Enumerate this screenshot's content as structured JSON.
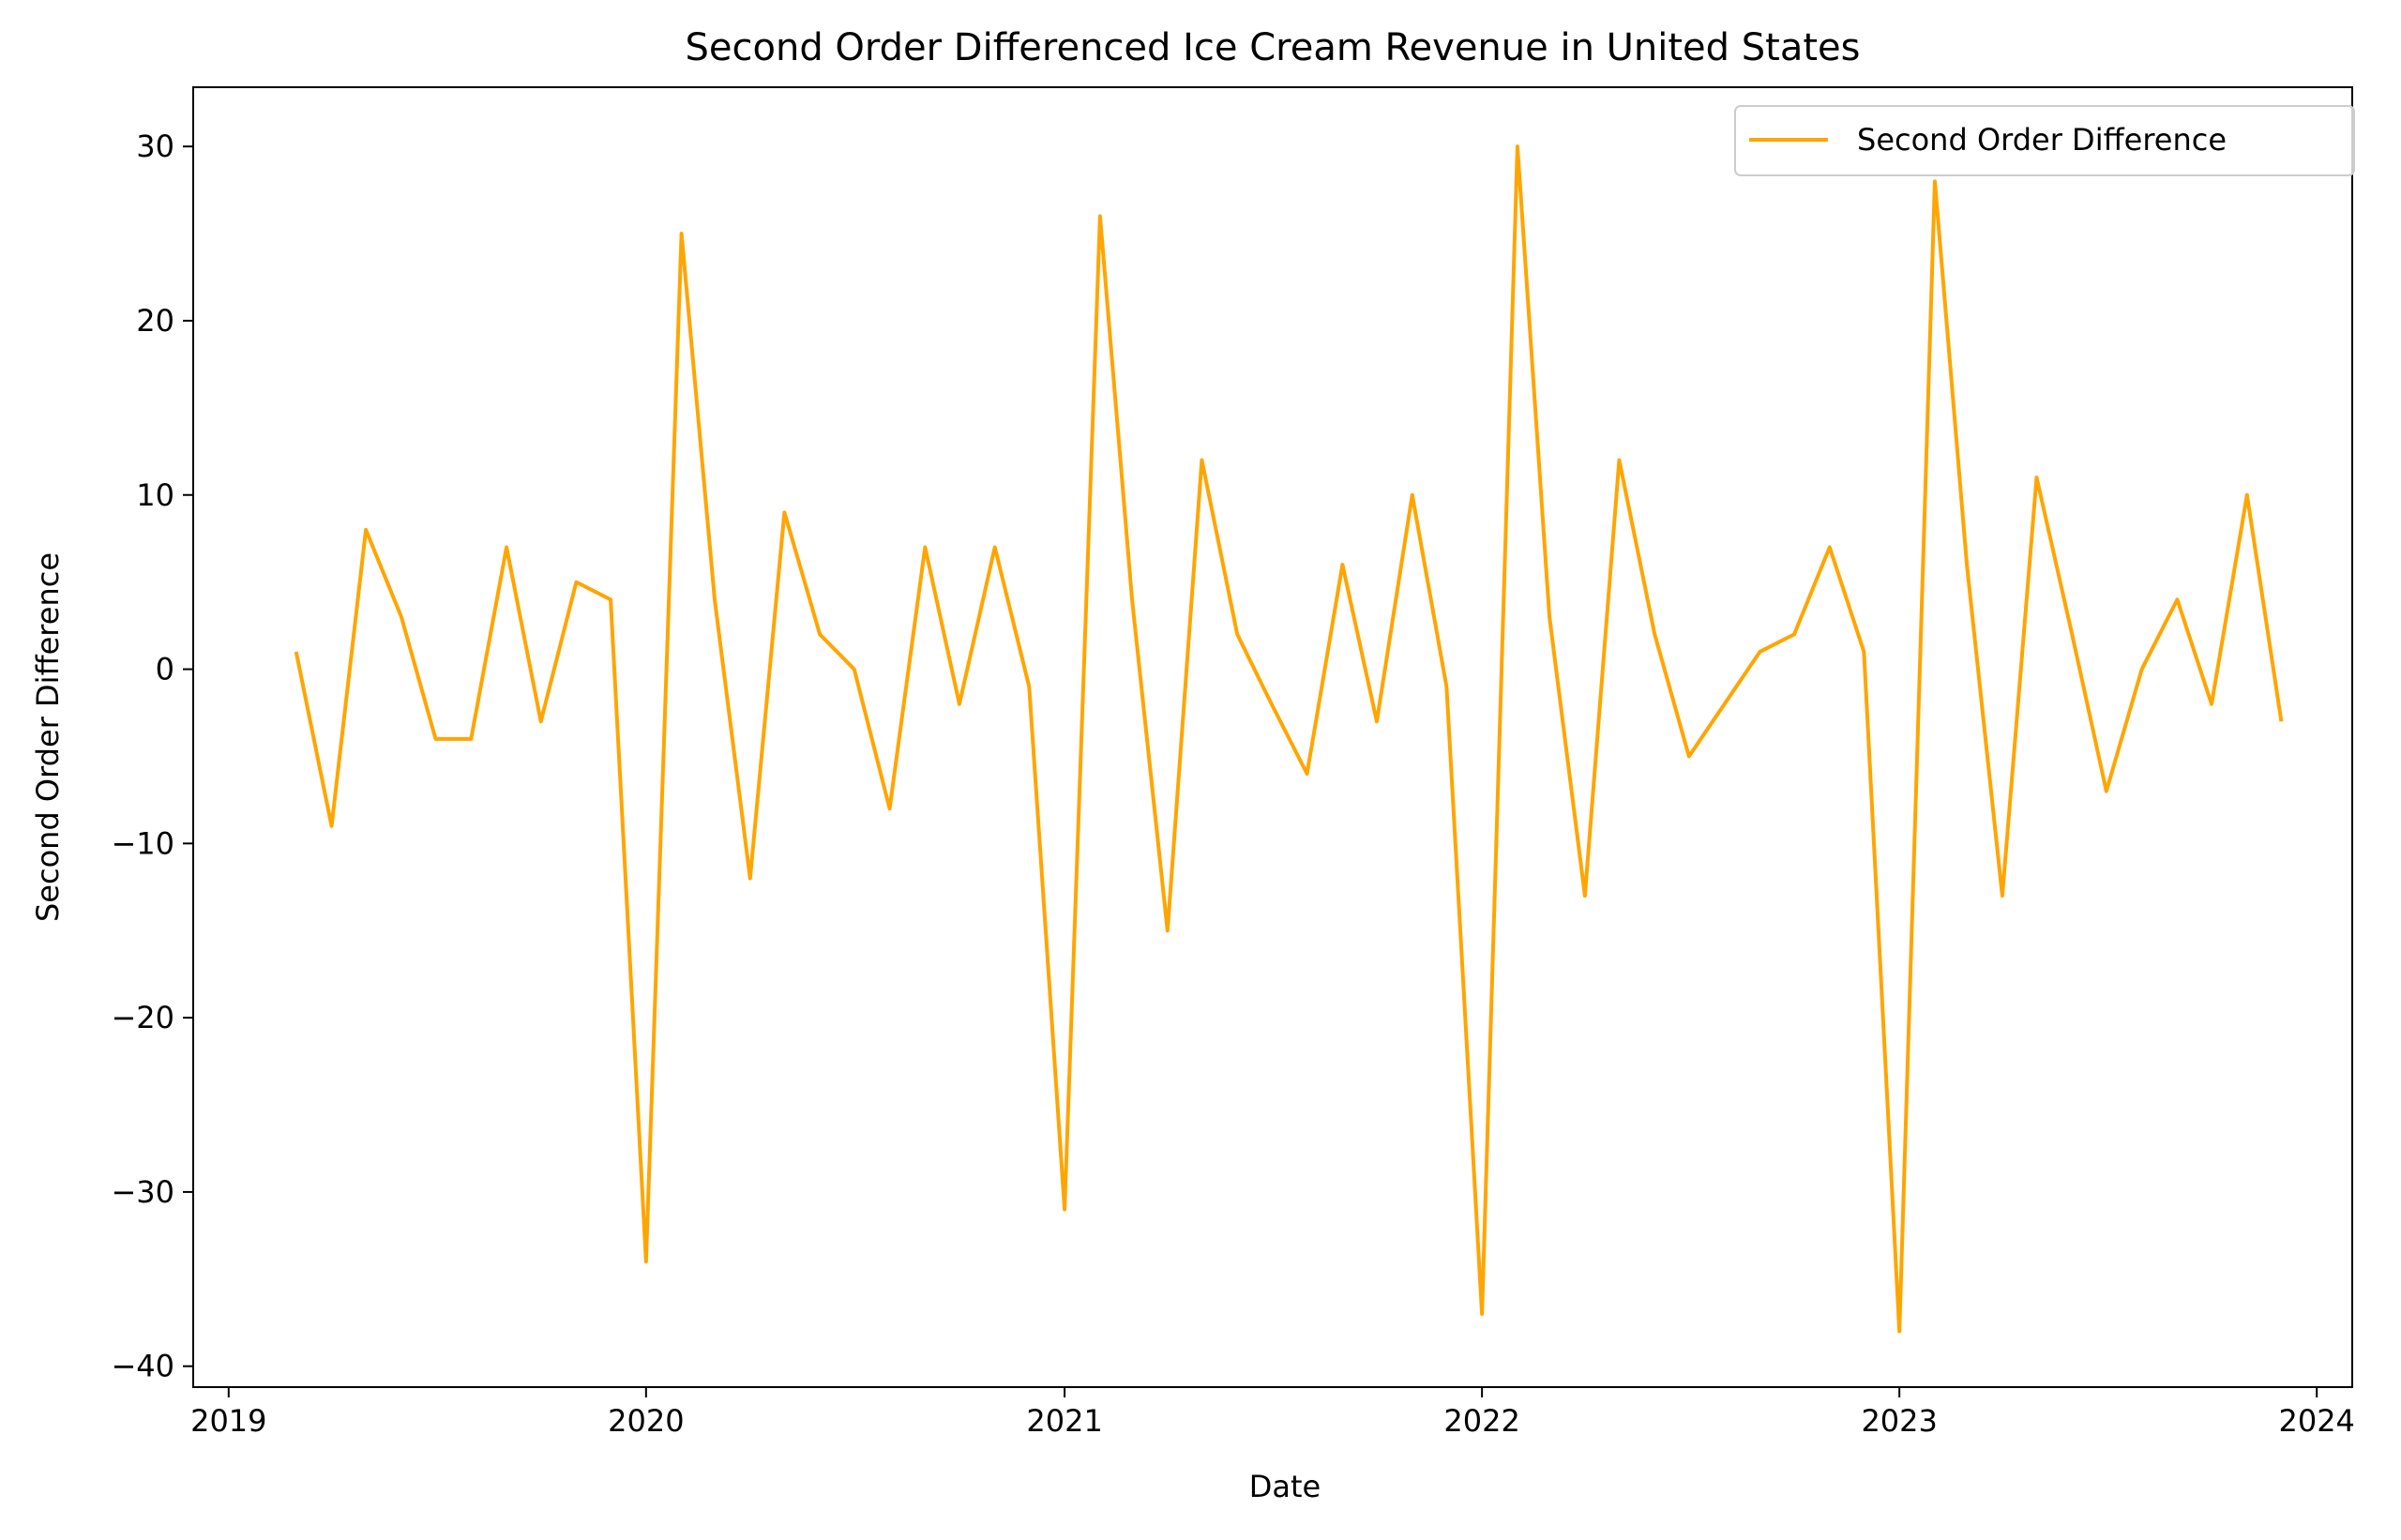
{
  "chart_data": {
    "type": "line",
    "title": "Second Order Differenced Ice Cream Revenue in United States",
    "xlabel": "Date",
    "ylabel": "Second Order Difference",
    "x_axis_type": "date",
    "xlim": [
      "2018-12-01",
      "2024-02-01"
    ],
    "ylim": [
      -41.2,
      33.4
    ],
    "x_ticks": [
      {
        "date": "2019-01-01",
        "label": "2019"
      },
      {
        "date": "2020-01-01",
        "label": "2020"
      },
      {
        "date": "2021-01-01",
        "label": "2021"
      },
      {
        "date": "2022-01-01",
        "label": "2022"
      },
      {
        "date": "2023-01-01",
        "label": "2023"
      },
      {
        "date": "2024-01-01",
        "label": "2024"
      }
    ],
    "y_ticks": [
      {
        "value": 30,
        "label": "30"
      },
      {
        "value": 20,
        "label": "20"
      },
      {
        "value": 10,
        "label": "10"
      },
      {
        "value": 0,
        "label": "0"
      },
      {
        "value": -10,
        "label": "−10"
      },
      {
        "value": -20,
        "label": "−20"
      },
      {
        "value": -30,
        "label": "−30"
      },
      {
        "value": -40,
        "label": "−40"
      }
    ],
    "grid": false,
    "legend_position": "top-right",
    "series": [
      {
        "name": "Second Order Difference",
        "color": "#ffa500",
        "x": [
          "2019-03-01",
          "2019-04-01",
          "2019-05-01",
          "2019-06-01",
          "2019-07-01",
          "2019-08-01",
          "2019-09-01",
          "2019-10-01",
          "2019-11-01",
          "2019-12-01",
          "2020-01-01",
          "2020-02-01",
          "2020-03-01",
          "2020-04-01",
          "2020-05-01",
          "2020-06-01",
          "2020-07-01",
          "2020-08-01",
          "2020-09-01",
          "2020-10-01",
          "2020-11-01",
          "2020-12-01",
          "2021-01-01",
          "2021-02-01",
          "2021-03-01",
          "2021-04-01",
          "2021-05-01",
          "2021-06-01",
          "2021-07-01",
          "2021-08-01",
          "2021-09-01",
          "2021-10-01",
          "2021-11-01",
          "2021-12-01",
          "2022-01-01",
          "2022-02-01",
          "2022-03-01",
          "2022-04-01",
          "2022-05-01",
          "2022-06-01",
          "2022-07-01",
          "2022-08-01",
          "2022-09-01",
          "2022-10-01",
          "2022-11-01",
          "2022-12-01",
          "2023-01-01",
          "2023-02-01",
          "2023-03-01",
          "2023-04-01",
          "2023-05-01",
          "2023-06-01",
          "2023-07-01",
          "2023-08-01",
          "2023-09-01",
          "2023-10-01",
          "2023-11-01",
          "2023-12-01"
        ],
        "y": [
          1,
          -9,
          8,
          3,
          -4,
          -4,
          7,
          -3,
          5,
          4,
          -34,
          25,
          4,
          -12,
          9,
          2,
          0,
          -8,
          7,
          -2,
          7,
          -1,
          -31,
          26,
          4,
          -15,
          12,
          2,
          -2,
          -6,
          6,
          -3,
          10,
          -1,
          -37,
          30,
          3,
          -13,
          12,
          2,
          -5,
          -2,
          1,
          2,
          7,
          1,
          -38,
          28,
          6,
          -13,
          11,
          2,
          -7,
          0,
          4,
          -2,
          10,
          -3
        ]
      }
    ]
  }
}
